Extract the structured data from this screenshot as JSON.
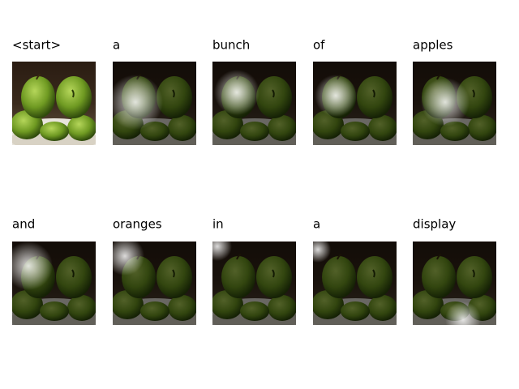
{
  "words": [
    "<start>",
    "a",
    "bunch",
    "of",
    "apples",
    "and",
    "oranges",
    "in",
    "a",
    "display"
  ]
}
